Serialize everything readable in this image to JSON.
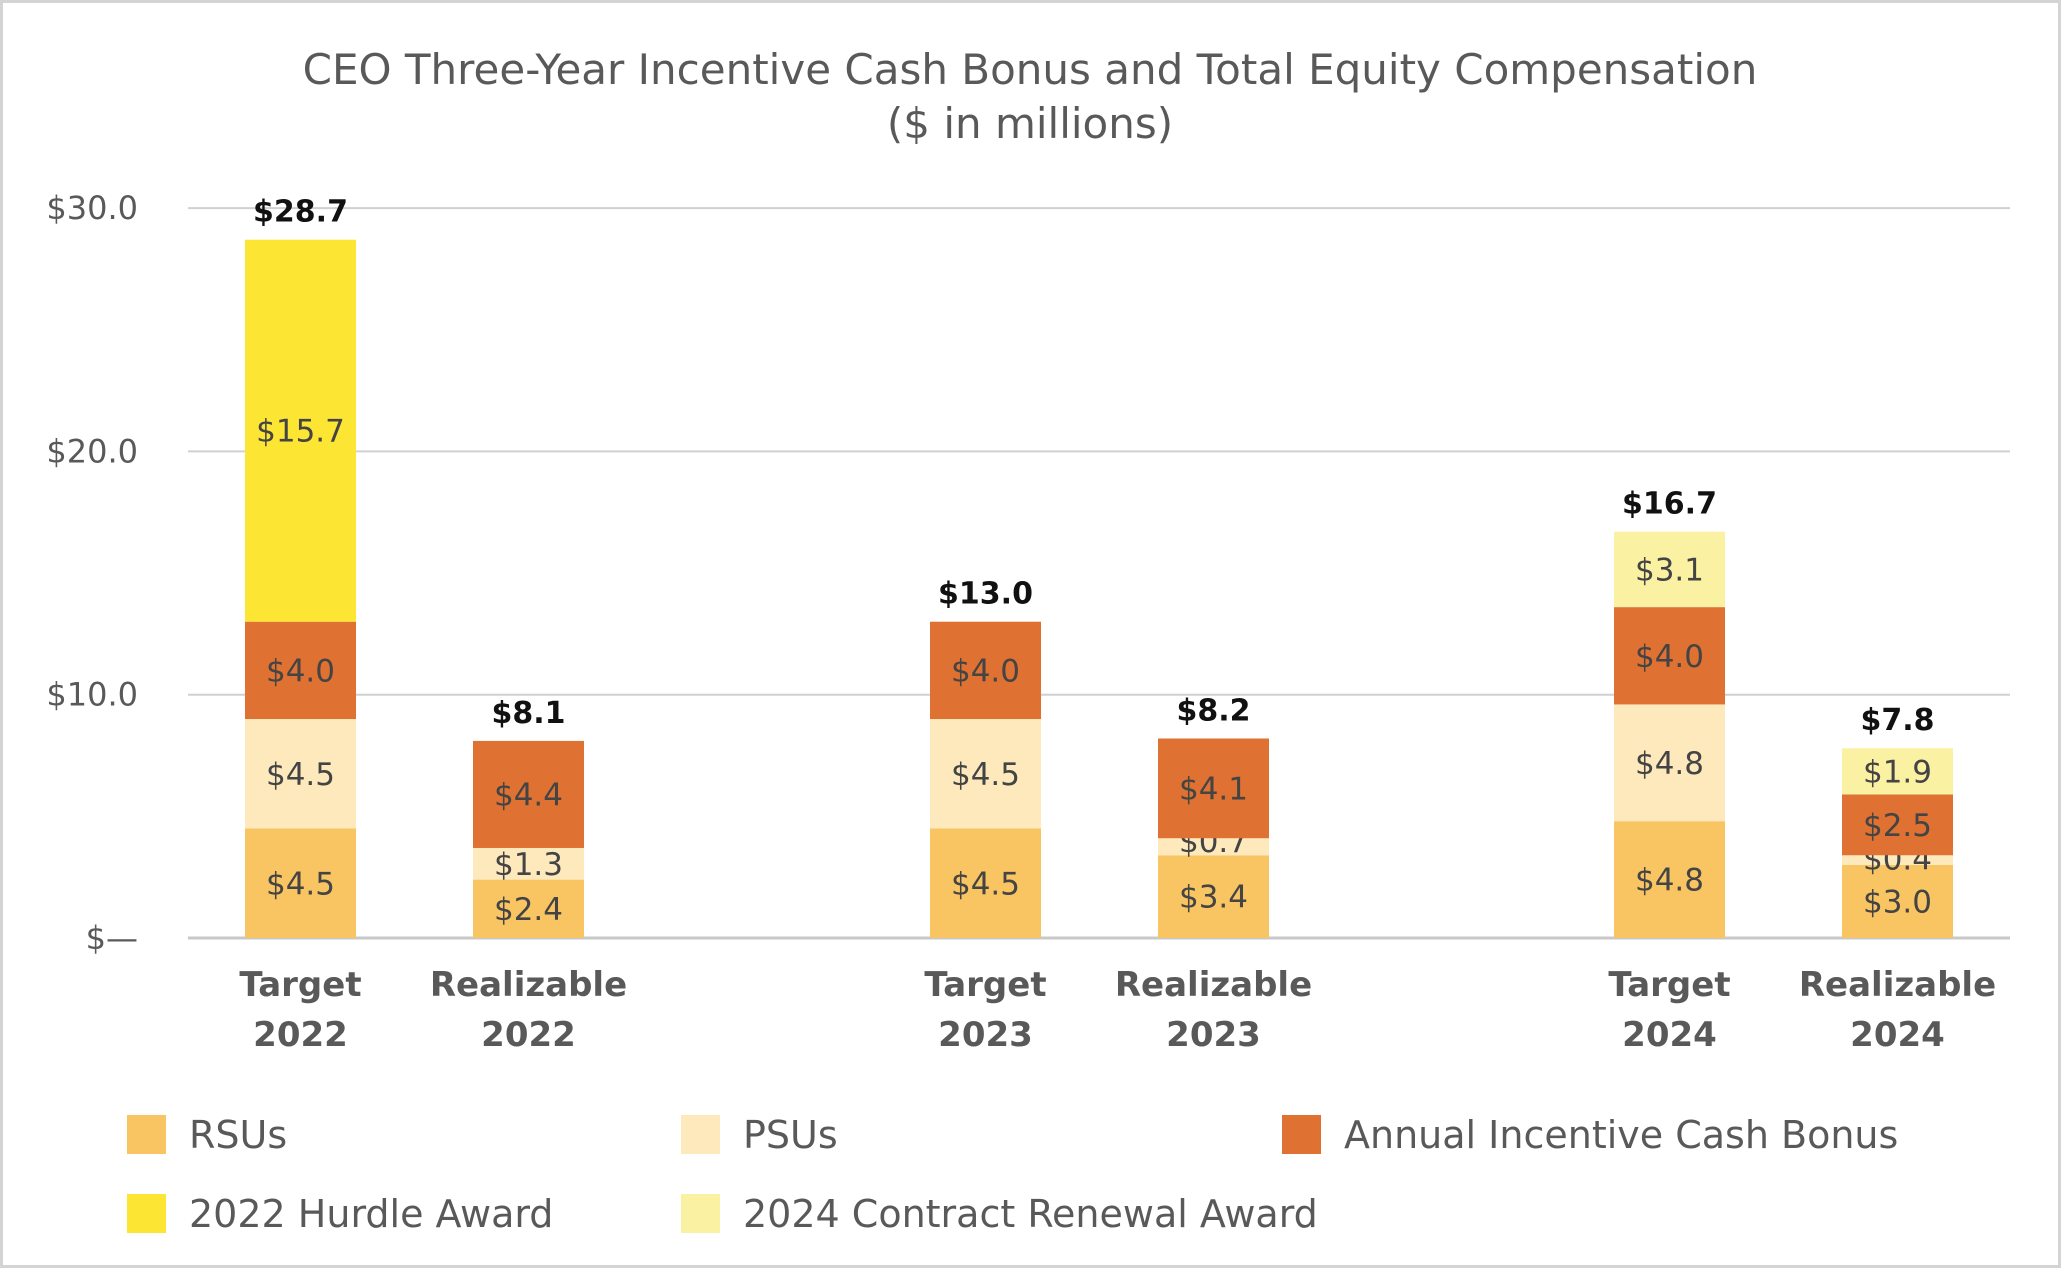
{
  "chart_data": {
    "type": "bar",
    "stacked": true,
    "title": "CEO Three-Year Incentive Cash Bonus and Total Equity Compensation",
    "subtitle": "($ in millions)",
    "xlabel": "",
    "ylabel": "",
    "ylim": [
      0,
      30
    ],
    "y_ticks": [
      0,
      10,
      20,
      30
    ],
    "y_tick_labels": [
      "$—",
      "$10.0",
      "$20.0",
      "$30.0"
    ],
    "grid": true,
    "categories": [
      {
        "line1": "Target",
        "line2": "2022",
        "group": 0
      },
      {
        "line1": "Realizable",
        "line2": "2022",
        "group": 0
      },
      {
        "line1": "Target",
        "line2": "2023",
        "group": 1
      },
      {
        "line1": "Realizable",
        "line2": "2023",
        "group": 1
      },
      {
        "line1": "Target",
        "line2": "2024",
        "group": 2
      },
      {
        "line1": "Realizable",
        "line2": "2024",
        "group": 2
      }
    ],
    "totals": [
      28.7,
      8.1,
      13.0,
      8.2,
      16.7,
      7.8
    ],
    "total_labels": [
      "$28.7",
      "$8.1",
      "$13.0",
      "$8.2",
      "$16.7",
      "$7.8"
    ],
    "series": [
      {
        "name": "RSUs",
        "color": "#f9c462",
        "values": [
          4.5,
          2.4,
          4.5,
          3.4,
          4.8,
          3.0
        ],
        "labels": [
          "$4.5",
          "$2.4",
          "$4.5",
          "$3.4",
          "$4.8",
          "$3.0"
        ]
      },
      {
        "name": "PSUs",
        "color": "#fde9bc",
        "values": [
          4.5,
          1.3,
          4.5,
          0.7,
          4.8,
          0.4
        ],
        "labels": [
          "$4.5",
          "$1.3",
          "$4.5",
          "$0.7",
          "$4.8",
          "$0.4"
        ]
      },
      {
        "name": "Annual Incentive Cash Bonus",
        "color": "#df7132",
        "values": [
          4.0,
          4.4,
          4.0,
          4.1,
          4.0,
          2.5
        ],
        "labels": [
          "$4.0",
          "$4.4",
          "$4.0",
          "$4.1",
          "$4.0",
          "$2.5"
        ]
      },
      {
        "name": "2022 Hurdle Award",
        "color": "#fde534",
        "values": [
          15.7,
          0,
          0,
          0,
          0,
          0
        ],
        "labels": [
          "$15.7",
          "",
          "",
          "",
          "",
          ""
        ]
      },
      {
        "name": "2024 Contract Renewal Award",
        "color": "#fbf1a3",
        "values": [
          0,
          0,
          0,
          0,
          3.1,
          1.9
        ],
        "labels": [
          "",
          "",
          "",
          "",
          "$3.1",
          "$1.9"
        ]
      }
    ],
    "legend": {
      "placement": "bottom",
      "order": [
        "RSUs",
        "PSUs",
        "Annual Incentive Cash Bonus",
        "2022 Hurdle Award",
        "2024 Contract Renewal Award"
      ]
    }
  }
}
